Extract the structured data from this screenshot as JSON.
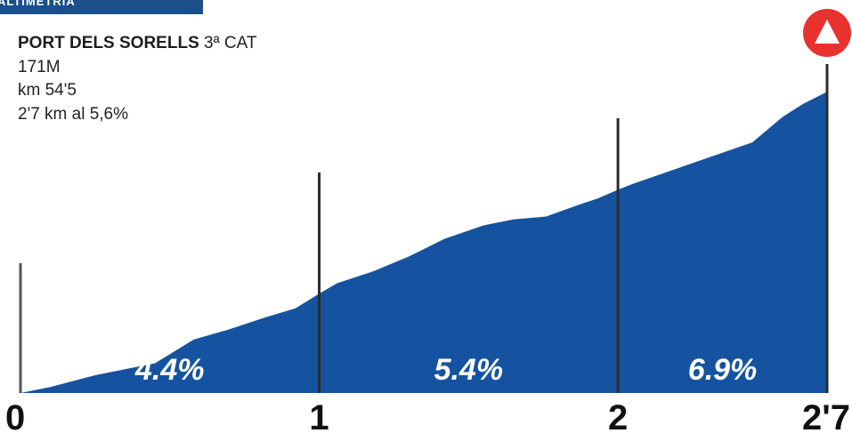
{
  "banner": {
    "text": "ALTIMETRIA"
  },
  "climb": {
    "name": "PORT DELS SORELLS",
    "category": "3ª CAT",
    "altitude": "171M",
    "km_position": "km 54'5",
    "length_gradient": "2'7 km al 5,6%"
  },
  "colors": {
    "profile_fill": "#1553a0",
    "banner": "#1b4f8a",
    "summit_icon": "#e8322d",
    "markers": "#555555"
  },
  "icons": {
    "summit": "mountain-summit-icon"
  },
  "chart_data": {
    "type": "area",
    "title": "PORT DELS SORELLS 3ª CAT",
    "xlim": [
      0,
      2.7
    ],
    "x_tick_labels": [
      {
        "x": 0,
        "label": "0"
      },
      {
        "x": 1,
        "label": "1"
      },
      {
        "x": 2,
        "label": "2"
      },
      {
        "x": 2.7,
        "label": "2'7"
      }
    ],
    "segments": [
      {
        "from": 0,
        "to": 1,
        "gradient_label": "4.4%"
      },
      {
        "from": 1,
        "to": 2,
        "gradient_label": "5.4%"
      },
      {
        "from": 2,
        "to": 2.7,
        "gradient_label": "6.9%"
      }
    ],
    "profile": {
      "x": [
        0,
        0.1,
        0.25,
        0.35,
        0.45,
        0.58,
        0.7,
        0.82,
        0.92,
        1.0,
        1.06,
        1.18,
        1.3,
        1.42,
        1.55,
        1.65,
        1.76,
        1.87,
        1.93,
        2.0,
        2.05,
        2.15,
        2.25,
        2.35,
        2.45,
        2.55,
        2.62,
        2.7
      ],
      "y": [
        0,
        4,
        12,
        16,
        20,
        36,
        43,
        51,
        57,
        67,
        74,
        82,
        92,
        104,
        113,
        117,
        119,
        127,
        131,
        137,
        141,
        148,
        155,
        162,
        169,
        186,
        195,
        203
      ]
    },
    "ylim": [
      0,
      205
    ],
    "grid": false
  }
}
